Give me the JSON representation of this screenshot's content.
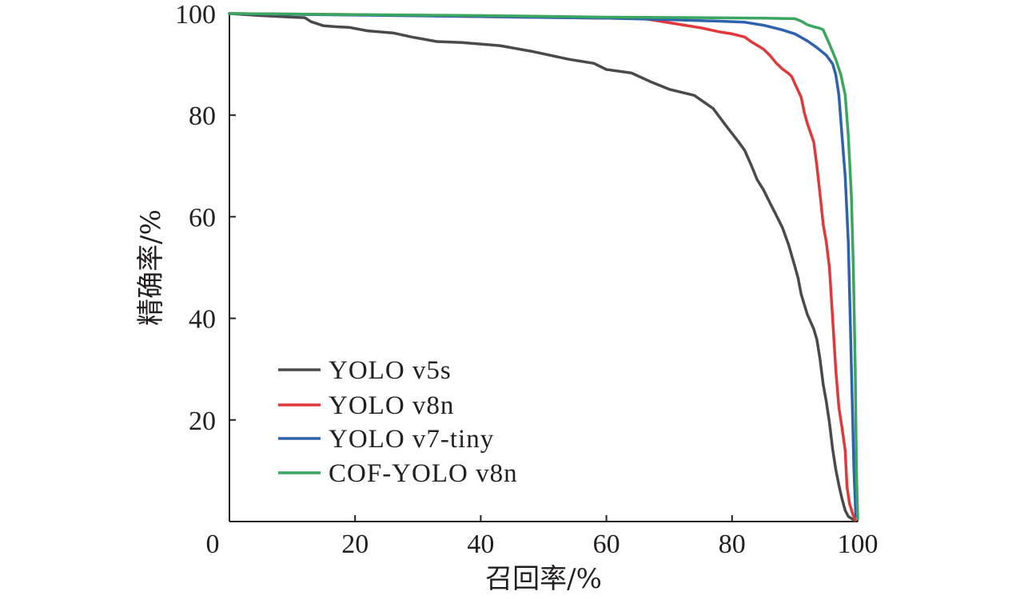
{
  "chart_data": {
    "type": "line",
    "title": "",
    "xlabel": "召回率/%",
    "ylabel": "精确率/%",
    "xlim": [
      0,
      100
    ],
    "ylim": [
      0,
      100
    ],
    "x_ticks": [
      0,
      20,
      40,
      60,
      80,
      100
    ],
    "y_ticks": [
      20,
      40,
      60,
      80,
      100
    ],
    "legend_position": "bottom-left",
    "grid": false,
    "series": [
      {
        "name": "YOLO v5s",
        "color": "#4a4a4c",
        "points": [
          [
            0,
            100
          ],
          [
            5,
            99.6
          ],
          [
            10,
            99.3
          ],
          [
            12,
            99.2
          ],
          [
            13,
            98.4
          ],
          [
            15,
            97.6
          ],
          [
            17,
            97.4
          ],
          [
            19,
            97.3
          ],
          [
            22,
            96.6
          ],
          [
            26,
            96.2
          ],
          [
            29,
            95.4
          ],
          [
            33,
            94.5
          ],
          [
            37,
            94.3
          ],
          [
            43,
            93.7
          ],
          [
            48,
            92.6
          ],
          [
            54,
            91.0
          ],
          [
            58,
            90.2
          ],
          [
            60,
            89.0
          ],
          [
            64,
            88.3
          ],
          [
            67,
            86.6
          ],
          [
            70,
            85.1
          ],
          [
            74,
            83.9
          ],
          [
            77,
            81.3
          ],
          [
            79,
            78.0
          ],
          [
            81,
            74.8
          ],
          [
            82,
            73.1
          ],
          [
            83,
            70.3
          ],
          [
            84,
            67.3
          ],
          [
            85,
            65.3
          ],
          [
            86,
            62.8
          ],
          [
            87,
            60.4
          ],
          [
            88,
            57.9
          ],
          [
            89,
            54.5
          ],
          [
            90,
            50.2
          ],
          [
            90.5,
            48.0
          ],
          [
            91,
            44.7
          ],
          [
            92,
            40.7
          ],
          [
            93,
            37.9
          ],
          [
            93.5,
            35.8
          ],
          [
            94,
            32.0
          ],
          [
            94.5,
            27.0
          ],
          [
            95,
            23.6
          ],
          [
            95.5,
            19.5
          ],
          [
            96,
            14.3
          ],
          [
            96.5,
            10.3
          ],
          [
            97,
            7.2
          ],
          [
            97.5,
            4.5
          ],
          [
            98,
            2.2
          ],
          [
            98.5,
            1.0
          ],
          [
            99.5,
            0.2
          ]
        ]
      },
      {
        "name": "YOLO v8n",
        "color": "#e0383b",
        "points": [
          [
            0,
            100
          ],
          [
            20,
            99.8
          ],
          [
            40,
            99.4
          ],
          [
            60,
            99.1
          ],
          [
            66,
            99.0
          ],
          [
            68,
            98.6
          ],
          [
            72,
            97.8
          ],
          [
            75,
            97.2
          ],
          [
            78,
            96.4
          ],
          [
            80,
            96.0
          ],
          [
            82,
            95.4
          ],
          [
            83,
            94.5
          ],
          [
            85,
            93.0
          ],
          [
            86,
            91.8
          ],
          [
            87,
            90.3
          ],
          [
            88,
            89.1
          ],
          [
            89,
            88.2
          ],
          [
            89.5,
            87.6
          ],
          [
            90,
            86.2
          ],
          [
            91,
            83.5
          ],
          [
            91.5,
            80.5
          ],
          [
            92,
            78.3
          ],
          [
            93,
            74.7
          ],
          [
            93.5,
            70.0
          ],
          [
            94,
            64.5
          ],
          [
            94.5,
            58.5
          ],
          [
            95,
            55.0
          ],
          [
            95.5,
            50.0
          ],
          [
            96,
            40.0
          ],
          [
            96.5,
            30.0
          ],
          [
            97,
            22.5
          ],
          [
            97.5,
            18.5
          ],
          [
            98,
            14.0
          ],
          [
            98.3,
            6.8
          ],
          [
            98.7,
            3.5
          ],
          [
            99.2,
            1.5
          ],
          [
            99.6,
            0.3
          ]
        ]
      },
      {
        "name": "YOLO v7-tiny",
        "color": "#2f62ae",
        "points": [
          [
            0,
            100
          ],
          [
            20,
            99.7
          ],
          [
            40,
            99.4
          ],
          [
            60,
            99.1
          ],
          [
            70,
            98.8
          ],
          [
            78,
            98.5
          ],
          [
            82,
            98.3
          ],
          [
            85,
            97.7
          ],
          [
            88,
            96.8
          ],
          [
            90,
            96.0
          ],
          [
            92,
            94.6
          ],
          [
            93.5,
            93.3
          ],
          [
            95,
            91.8
          ],
          [
            96,
            90.1
          ],
          [
            96.5,
            88.0
          ],
          [
            97,
            84.0
          ],
          [
            97.5,
            76.0
          ],
          [
            98,
            68.0
          ],
          [
            98.5,
            55.0
          ],
          [
            98.8,
            40.0
          ],
          [
            99.1,
            25.0
          ],
          [
            99.4,
            10.0
          ],
          [
            99.7,
            1.0
          ]
        ]
      },
      {
        "name": "COF-YOLO v8n",
        "color": "#3aa65f",
        "points": [
          [
            0,
            100
          ],
          [
            20,
            99.8
          ],
          [
            40,
            99.6
          ],
          [
            60,
            99.3
          ],
          [
            75,
            99.2
          ],
          [
            85,
            99.1
          ],
          [
            90,
            99.0
          ],
          [
            91,
            98.5
          ],
          [
            92,
            97.8
          ],
          [
            93,
            97.4
          ],
          [
            94,
            97.1
          ],
          [
            94.5,
            96.8
          ],
          [
            95.5,
            94.0
          ],
          [
            96.5,
            91.0
          ],
          [
            97.3,
            88.0
          ],
          [
            98,
            84.0
          ],
          [
            98.5,
            76.0
          ],
          [
            99,
            64.0
          ],
          [
            99.3,
            50.0
          ],
          [
            99.6,
            30.0
          ],
          [
            99.8,
            10.0
          ],
          [
            100,
            0.5
          ]
        ]
      }
    ]
  }
}
